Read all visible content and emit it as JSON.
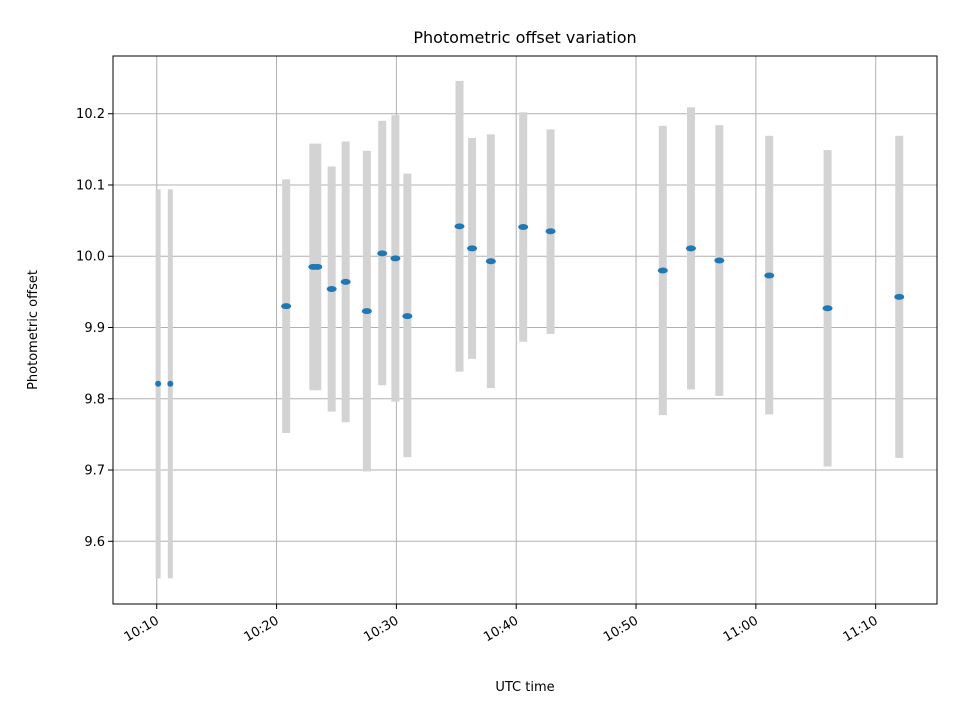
{
  "chart_data": {
    "type": "scatter",
    "title": "Photometric offset variation",
    "xlabel": "UTC time",
    "ylabel": "Photometric offset",
    "x_axis_type": "time",
    "x_ticks": [
      "10:10",
      "10:20",
      "10:30",
      "10:40",
      "10:50",
      "11:00",
      "11:10"
    ],
    "x_tick_rotation_deg": 30,
    "xlim": [
      "10:06:21",
      "11:15:07"
    ],
    "y_ticks": [
      9.6,
      9.7,
      9.8,
      9.9,
      10.0,
      10.1,
      10.2
    ],
    "ylim": [
      9.512,
      10.281
    ],
    "grid": true,
    "legend": "none",
    "colors": {
      "point": "#1f77b4",
      "errorbar": "#d3d3d3"
    },
    "series": [
      {
        "points": [
          {
            "x": "10:10:07",
            "y": 9.821,
            "yerr_low": 9.548,
            "yerr_high": 10.094,
            "width_min": 0.1
          },
          {
            "x": "10:11:08",
            "y": 9.821,
            "yerr_low": 9.548,
            "yerr_high": 10.094,
            "width_min": 0.1
          },
          {
            "x": "10:20:48",
            "y": 9.93,
            "yerr_low": 9.752,
            "yerr_high": 10.108,
            "width_min": 0.4
          },
          {
            "x": "10:23:04",
            "y": 9.985,
            "yerr_low": 9.812,
            "yerr_high": 10.158,
            "width_min": 0.4
          },
          {
            "x": "10:23:24",
            "y": 9.985,
            "yerr_low": 9.812,
            "yerr_high": 10.158,
            "width_min": 0.4
          },
          {
            "x": "10:24:36",
            "y": 9.954,
            "yerr_low": 9.782,
            "yerr_high": 10.126,
            "width_min": 0.4
          },
          {
            "x": "10:25:46",
            "y": 9.964,
            "yerr_low": 9.767,
            "yerr_high": 10.161,
            "width_min": 0.4
          },
          {
            "x": "10:27:32",
            "y": 9.923,
            "yerr_low": 9.698,
            "yerr_high": 10.148,
            "width_min": 0.4
          },
          {
            "x": "10:28:49",
            "y": 10.004,
            "yerr_low": 9.819,
            "yerr_high": 10.19,
            "width_min": 0.4
          },
          {
            "x": "10:29:55",
            "y": 9.997,
            "yerr_low": 9.796,
            "yerr_high": 10.198,
            "width_min": 0.4
          },
          {
            "x": "10:30:55",
            "y": 9.916,
            "yerr_low": 9.718,
            "yerr_high": 10.116,
            "width_min": 0.4
          },
          {
            "x": "10:35:16",
            "y": 10.042,
            "yerr_low": 9.838,
            "yerr_high": 10.246,
            "width_min": 0.4
          },
          {
            "x": "10:36:19",
            "y": 10.011,
            "yerr_low": 9.856,
            "yerr_high": 10.166,
            "width_min": 0.4
          },
          {
            "x": "10:37:53",
            "y": 9.993,
            "yerr_low": 9.815,
            "yerr_high": 10.171,
            "width_min": 0.4
          },
          {
            "x": "10:40:35",
            "y": 10.041,
            "yerr_low": 9.88,
            "yerr_high": 10.202,
            "width_min": 0.4
          },
          {
            "x": "10:42:52",
            "y": 10.035,
            "yerr_low": 9.891,
            "yerr_high": 10.178,
            "width_min": 0.4
          },
          {
            "x": "10:52:14",
            "y": 9.98,
            "yerr_low": 9.777,
            "yerr_high": 10.183,
            "width_min": 0.4
          },
          {
            "x": "10:54:35",
            "y": 10.011,
            "yerr_low": 9.813,
            "yerr_high": 10.209,
            "width_min": 0.4
          },
          {
            "x": "10:56:57",
            "y": 9.994,
            "yerr_low": 9.804,
            "yerr_high": 10.184,
            "width_min": 0.4
          },
          {
            "x": "11:01:07",
            "y": 9.973,
            "yerr_low": 9.778,
            "yerr_high": 10.169,
            "width_min": 0.4
          },
          {
            "x": "11:05:59",
            "y": 9.927,
            "yerr_low": 9.705,
            "yerr_high": 10.149,
            "width_min": 0.4
          },
          {
            "x": "11:11:58",
            "y": 9.943,
            "yerr_low": 9.717,
            "yerr_high": 10.169,
            "width_min": 0.4
          }
        ]
      }
    ]
  }
}
